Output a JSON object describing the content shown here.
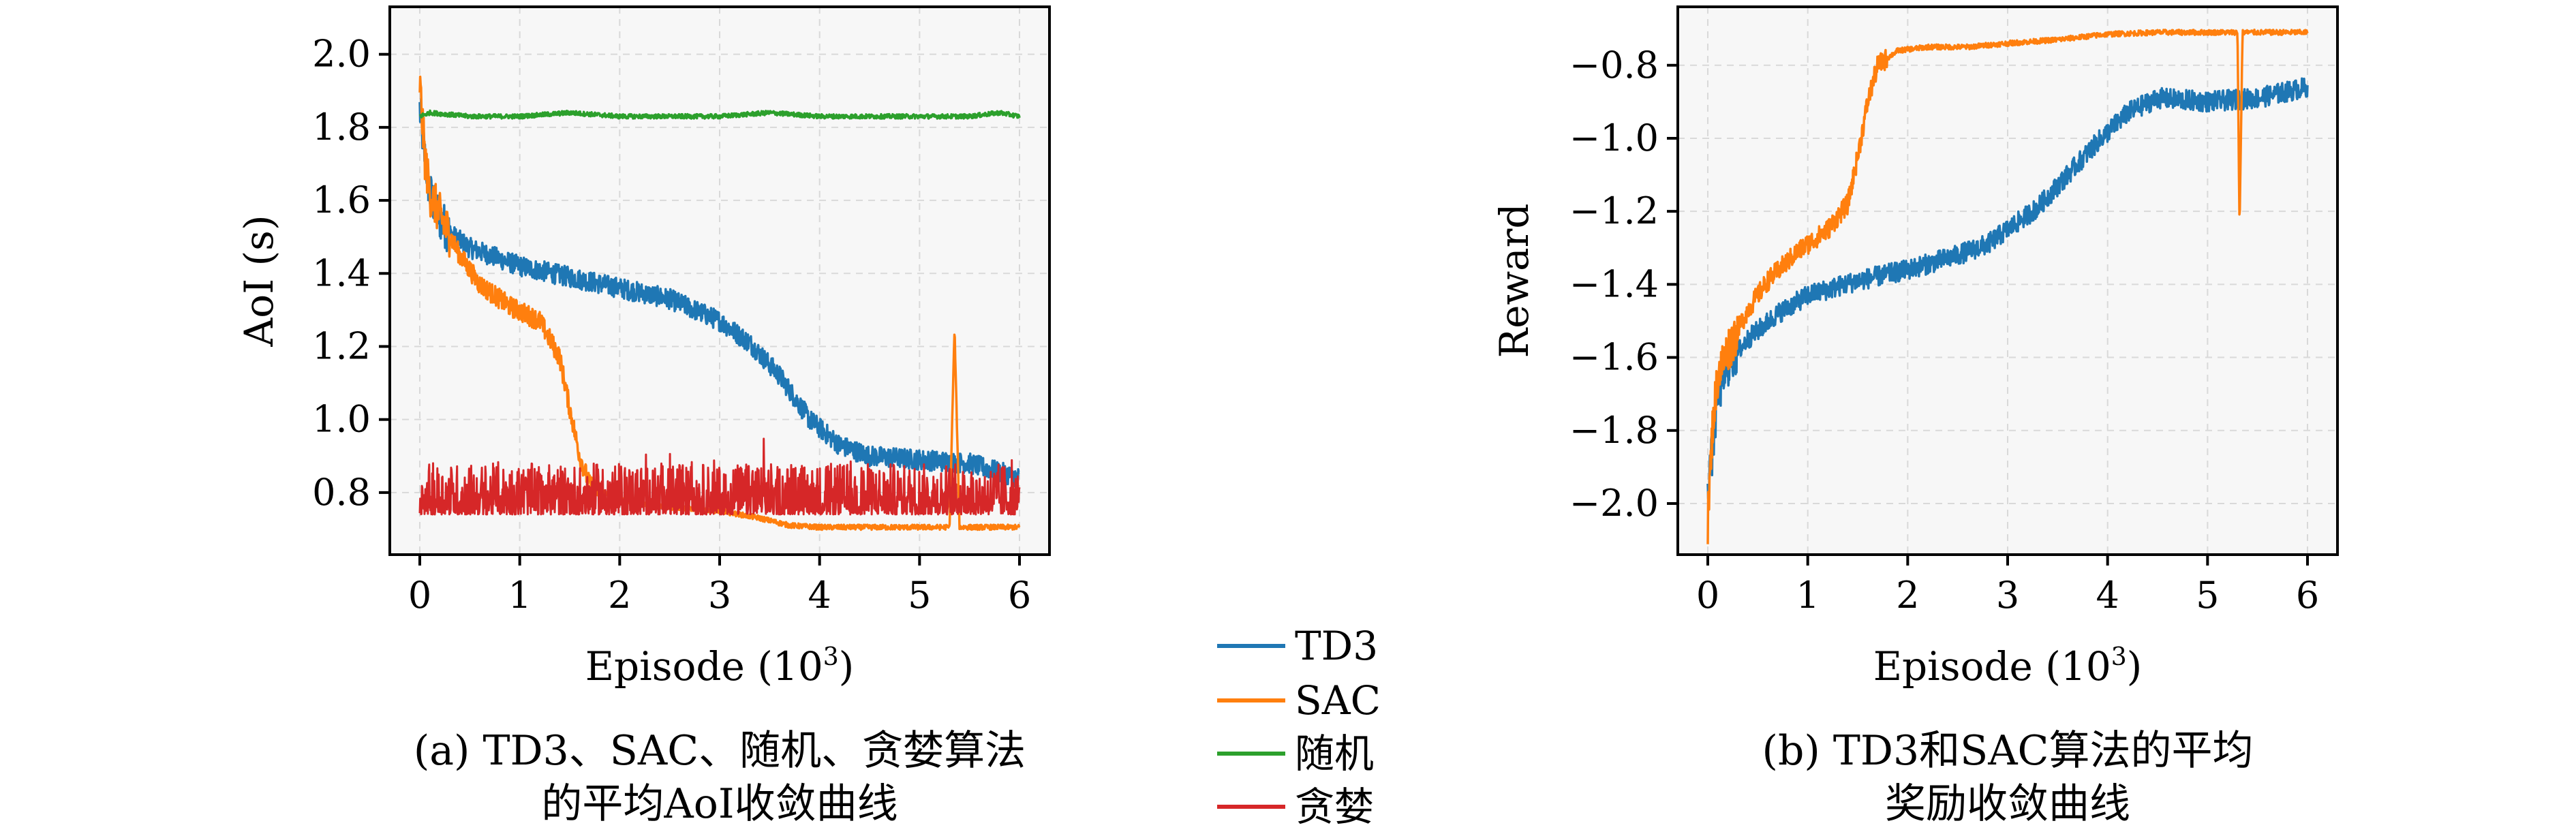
{
  "chart_data": [
    {
      "type": "line",
      "caption_line1": "(a) TD3、SAC、随机、贪婪算法",
      "caption_line2": "的平均AoI收敛曲线",
      "xlabel": "Episode (10",
      "xlabel_sup": "3",
      "xlabel_end": ")",
      "ylabel": "AoI (s)",
      "xlim": [
        -0.3,
        6.3
      ],
      "ylim": [
        0.63,
        2.13
      ],
      "xticks": [
        "0",
        "1",
        "2",
        "3",
        "4",
        "5",
        "6"
      ],
      "yticks": [
        "0.8",
        "1.0",
        "1.2",
        "1.4",
        "1.6",
        "1.8",
        "2.0"
      ],
      "grid": true,
      "series": [
        {
          "name": "TD3",
          "color": "#1f77b4",
          "x": [
            0,
            0.05,
            0.1,
            0.2,
            0.3,
            0.5,
            0.8,
            1.0,
            1.5,
            2.0,
            2.5,
            3.0,
            3.3,
            3.6,
            3.9,
            4.2,
            4.5,
            5.0,
            5.5,
            6.0
          ],
          "y": [
            1.85,
            1.72,
            1.62,
            1.55,
            1.51,
            1.47,
            1.44,
            1.42,
            1.39,
            1.36,
            1.33,
            1.27,
            1.21,
            1.12,
            1.0,
            0.93,
            0.9,
            0.89,
            0.88,
            0.84
          ]
        },
        {
          "name": "SAC",
          "color": "#ff7f0e",
          "x": [
            0,
            0.05,
            0.1,
            0.2,
            0.4,
            0.6,
            0.9,
            1.2,
            1.4,
            1.5,
            1.6,
            1.7,
            2.0,
            2.5,
            3.0,
            3.4,
            3.7,
            4.0,
            5.0,
            5.3,
            5.35,
            5.4,
            6.0
          ],
          "y": [
            1.92,
            1.72,
            1.62,
            1.56,
            1.45,
            1.37,
            1.31,
            1.27,
            1.17,
            1.03,
            0.9,
            0.82,
            0.78,
            0.76,
            0.75,
            0.73,
            0.71,
            0.705,
            0.705,
            0.705,
            1.25,
            0.705,
            0.705
          ]
        },
        {
          "name": "随机",
          "color": "#2ca02c",
          "x": [
            0,
            0.1,
            0.5,
            1,
            1.5,
            2,
            2.5,
            3,
            3.5,
            4,
            4.5,
            5,
            5.5,
            5.8,
            6
          ],
          "y": [
            1.83,
            1.84,
            1.83,
            1.83,
            1.84,
            1.83,
            1.83,
            1.83,
            1.84,
            1.83,
            1.83,
            1.83,
            1.83,
            1.84,
            1.83
          ]
        },
        {
          "name": "贪婪",
          "color": "#d62728",
          "x": [
            0,
            6
          ],
          "y": [
            0.79,
            0.79
          ],
          "band": [
            0.74,
            0.88
          ]
        }
      ]
    },
    {
      "type": "line",
      "caption_line1": "(b) TD3和SAC算法的平均",
      "caption_line2": "奖励收敛曲线",
      "xlabel": "Episode (10",
      "xlabel_sup": "3",
      "xlabel_end": ")",
      "ylabel": "Reward",
      "xlim": [
        -0.3,
        6.3
      ],
      "ylim": [
        -2.14,
        -0.64
      ],
      "xticks": [
        "0",
        "1",
        "2",
        "3",
        "4",
        "5",
        "6"
      ],
      "yticks": [
        "−2.0",
        "−1.8",
        "−1.6",
        "−1.4",
        "−1.2",
        "−1.0",
        "−0.8"
      ],
      "grid": true,
      "series": [
        {
          "name": "TD3",
          "color": "#1f77b4",
          "x": [
            0,
            0.05,
            0.1,
            0.2,
            0.4,
            0.7,
            1.0,
            1.5,
            2.0,
            2.5,
            2.8,
            3.0,
            3.3,
            3.6,
            3.9,
            4.2,
            4.5,
            5.0,
            5.5,
            6.0
          ],
          "y": [
            -1.95,
            -1.85,
            -1.7,
            -1.62,
            -1.55,
            -1.48,
            -1.43,
            -1.39,
            -1.36,
            -1.32,
            -1.29,
            -1.25,
            -1.19,
            -1.1,
            -1.01,
            -0.93,
            -0.89,
            -0.9,
            -0.89,
            -0.86
          ]
        },
        {
          "name": "SAC",
          "color": "#ff7f0e",
          "x": [
            0,
            0.05,
            0.1,
            0.2,
            0.4,
            0.6,
            0.9,
            1.2,
            1.4,
            1.5,
            1.6,
            1.7,
            1.9,
            2.2,
            2.6,
            3.0,
            3.5,
            4.0,
            4.5,
            5.0,
            5.3,
            5.32,
            5.35,
            5.5,
            6.0
          ],
          "y": [
            -2.05,
            -1.78,
            -1.65,
            -1.58,
            -1.47,
            -1.39,
            -1.31,
            -1.25,
            -1.18,
            -1.05,
            -0.9,
            -0.8,
            -0.76,
            -0.75,
            -0.75,
            -0.74,
            -0.73,
            -0.715,
            -0.71,
            -0.71,
            -0.71,
            -1.25,
            -0.71,
            -0.71,
            -0.71
          ]
        }
      ]
    }
  ],
  "legend": {
    "items": [
      {
        "label": "TD3",
        "color": "#1f77b4"
      },
      {
        "label": "SAC",
        "color": "#ff7f0e"
      },
      {
        "label": "随机",
        "color": "#2ca02c"
      },
      {
        "label": "贪婪",
        "color": "#d62728"
      }
    ]
  }
}
